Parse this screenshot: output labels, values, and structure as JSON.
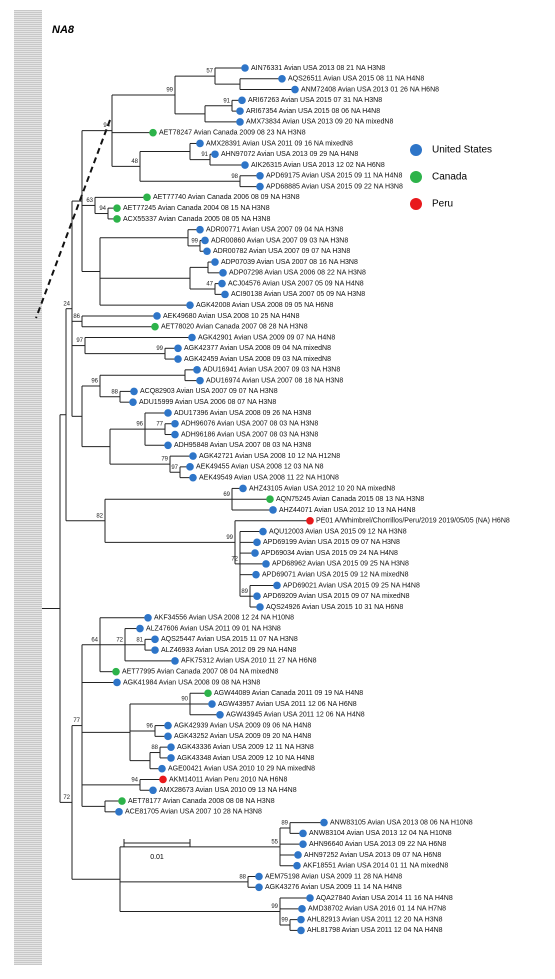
{
  "title": "NA8",
  "legend": [
    {
      "label": "United States",
      "color": "#2e75c8"
    },
    {
      "label": "Canada",
      "color": "#2db34a"
    },
    {
      "label": "Peru",
      "color": "#e8191c"
    }
  ],
  "scale_label": "0.01",
  "leaves": [
    {
      "label": "AIN76331 Avian USA 2013 08 21 NA H3N8",
      "color": "#2e75c8"
    },
    {
      "label": "AQS26511 Avian USA 2015 08 11 NA H4N8",
      "color": "#2e75c8"
    },
    {
      "label": "ANM72408 Avian USA 2013 01 26 NA H6N8",
      "color": "#2e75c8"
    },
    {
      "label": "ARI67263 Avian USA 2015 07 31 NA H3N8",
      "color": "#2e75c8"
    },
    {
      "label": "ARI67354 Avian USA 2015 08 06 NA H4N8",
      "color": "#2e75c8"
    },
    {
      "label": "AMX73834 Avian USA 2013 09 20 NA mixedN8",
      "color": "#2e75c8"
    },
    {
      "label": "AET78247 Avian Canada 2009 08 23 NA H3N8",
      "color": "#2db34a"
    },
    {
      "label": "AMX28391 Avian USA 2011 09 16 NA mixedN8",
      "color": "#2e75c8"
    },
    {
      "label": "AHN97072 Avian USA 2013 09 29 NA H4N8",
      "color": "#2e75c8"
    },
    {
      "label": "AIK26315 Avian USA 2013 12 02 NA H6N8",
      "color": "#2e75c8"
    },
    {
      "label": "APD69175 Avian USA 2015 09 11 NA H4N8",
      "color": "#2e75c8"
    },
    {
      "label": "APD68885 Avian USA 2015 09 22 NA H3N8",
      "color": "#2e75c8"
    },
    {
      "label": "AET77740 Avian Canada 2006 08 09 NA H3N8",
      "color": "#2db34a"
    },
    {
      "label": "AET77245 Avian Canada 2004 08 15 NA H3N8",
      "color": "#2db34a"
    },
    {
      "label": "ACX55337 Avian Canada 2005 08 05 NA H3N8",
      "color": "#2db34a"
    },
    {
      "label": "ADR00771 Avian USA 2007 09 04 NA H3N8",
      "color": "#2e75c8"
    },
    {
      "label": "ADR00860 Avian USA 2007 09 03 NA H3N8",
      "color": "#2e75c8"
    },
    {
      "label": "ADR00782 Avian USA 2007 09 07 NA H3N8",
      "color": "#2e75c8"
    },
    {
      "label": "ADP07039 Avian USA 2007 08 16 NA H3N8",
      "color": "#2e75c8"
    },
    {
      "label": "ADP07298 Avian USA 2006 08 22 NA H3N8",
      "color": "#2e75c8"
    },
    {
      "label": "ACJ04576 Avian USA 2007 05 09 NA H4N8",
      "color": "#2e75c8"
    },
    {
      "label": "ACI90138 Avian USA 2007 05 09 NA H3N8",
      "color": "#2e75c8"
    },
    {
      "label": "AGK42008 Avian USA 2008 09 05 NA H6N8",
      "color": "#2e75c8"
    },
    {
      "label": "AEK49680 Avian USA 2008 10 25 NA H4N8",
      "color": "#2e75c8"
    },
    {
      "label": "AET78020 Avian Canada 2007 08 28 NA H3N8",
      "color": "#2db34a"
    },
    {
      "label": "AGK42901 Avian USA 2009 09 07 NA H4N8",
      "color": "#2e75c8"
    },
    {
      "label": "AGK42377 Avian USA 2008 09 04 NA mixedN8",
      "color": "#2e75c8"
    },
    {
      "label": "AGK42459 Avian USA 2008 09 03 NA mixedN8",
      "color": "#2e75c8"
    },
    {
      "label": "ADU16941 Avian USA 2007 09 03 NA H3N8",
      "color": "#2e75c8"
    },
    {
      "label": "ADU16974 Avian USA 2007 08 18 NA H3N8",
      "color": "#2e75c8"
    },
    {
      "label": "ACQ82903 Avian USA 2007 09 07 NA H3N8",
      "color": "#2e75c8"
    },
    {
      "label": "ADU15999 Avian USA 2006 08 07 NA H3N8",
      "color": "#2e75c8"
    },
    {
      "label": "ADU17396 Avian USA 2008 09 26 NA H3N8",
      "color": "#2e75c8"
    },
    {
      "label": "ADH96076 Avian USA 2007 08 03 NA H3N8",
      "color": "#2e75c8"
    },
    {
      "label": "ADH96186 Avian USA 2007 08 03 NA H3N8",
      "color": "#2e75c8"
    },
    {
      "label": "ADH95848 Avian USA 2007 08 03 NA H3N8",
      "color": "#2e75c8"
    },
    {
      "label": "AGK42721 Avian USA 2008 10 12 NA H12N8",
      "color": "#2e75c8"
    },
    {
      "label": "AEK49455 Avian USA 2008 12 03 NA N8",
      "color": "#2e75c8"
    },
    {
      "label": "AEK49549 Avian USA 2008 11 22 NA H10N8",
      "color": "#2e75c8"
    },
    {
      "label": "AHZ43105 Avian USA 2012 10 20 NA mixedN8",
      "color": "#2e75c8"
    },
    {
      "label": "AQN75245 Avian Canada 2015 08 13 NA H3N8",
      "color": "#2db34a"
    },
    {
      "label": "AHZ44071 Avian USA 2012 10 13 NA H4N8",
      "color": "#2e75c8"
    },
    {
      "label": "PE01 A/Whimbrel/Chorrillos/Peru/2019 2019/05/05 (NA) H6N8",
      "color": "#e8191c"
    },
    {
      "label": "AQU12003 Avian USA 2015 09 12 NA H3N8",
      "color": "#2e75c8"
    },
    {
      "label": "APD69199 Avian USA 2015 09 07 NA H3N8",
      "color": "#2e75c8"
    },
    {
      "label": "APD69034 Avian USA 2015 09 24 NA H4N8",
      "color": "#2e75c8"
    },
    {
      "label": "APD68962 Avian USA 2015 09 25 NA H3N8",
      "color": "#2e75c8"
    },
    {
      "label": "APD69071 Avian USA 2015 09 12 NA mixedN8",
      "color": "#2e75c8"
    },
    {
      "label": "APD69021 Avian USA 2015 09 25 NA H4N8",
      "color": "#2e75c8"
    },
    {
      "label": "APD69209 Avian USA 2015 09 07 NA mixedN8",
      "color": "#2e75c8"
    },
    {
      "label": "AQS24926 Avian USA 2015 10 31 NA H6N8",
      "color": "#2e75c8"
    },
    {
      "label": "AKF34556 Avian USA 2008 12 24 NA H10N8",
      "color": "#2e75c8"
    },
    {
      "label": "ALZ47606 Avian USA 2011 09 01 NA H3N8",
      "color": "#2e75c8"
    },
    {
      "label": "AQS25447 Avian USA 2015 11 07 NA H3N8",
      "color": "#2e75c8"
    },
    {
      "label": "ALZ46933 Avian USA 2012 09 29 NA H4N8",
      "color": "#2e75c8"
    },
    {
      "label": "AFK75312 Avian USA 2010 11 27 NA H6N8",
      "color": "#2e75c8"
    },
    {
      "label": "AET77995 Avian Canada 2007 08 04 NA mixedN8",
      "color": "#2db34a"
    },
    {
      "label": "AGK41984 Avian USA 2008 09 08 NA H3N8",
      "color": "#2e75c8"
    },
    {
      "label": "AGW44089 Avian Canada 2011 09 19 NA H4N8",
      "color": "#2db34a"
    },
    {
      "label": "AGW43957 Avian USA 2011 12 06 NA H6N8",
      "color": "#2e75c8"
    },
    {
      "label": "AGW43945 Avian USA 2011 12 06 NA H4N8",
      "color": "#2e75c8"
    },
    {
      "label": "AGK42939 Avian USA 2009 09 06 NA H4N8",
      "color": "#2e75c8"
    },
    {
      "label": "AGK43252 Avian USA 2009 09 20 NA H4N8",
      "color": "#2e75c8"
    },
    {
      "label": "AGK43336 Avian USA 2009 12 11 NA H3N8",
      "color": "#2e75c8"
    },
    {
      "label": "AGK43348 Avian USA 2009 12 10 NA H4N8",
      "color": "#2e75c8"
    },
    {
      "label": "AGE00421 Avian USA 2010 10 29 NA mixedN8",
      "color": "#2e75c8"
    },
    {
      "label": "AKM14011 Avian Peru 2010 NA H6N8",
      "color": "#e8191c"
    },
    {
      "label": "AMX28673 Avian USA 2010 09 13 NA H4N8",
      "color": "#2e75c8"
    },
    {
      "label": "AET78177 Avian Canada 2008 08 08 NA H3N8",
      "color": "#2db34a"
    },
    {
      "label": "ACE81705 Avian USA 2007 10 28 NA H3N8",
      "color": "#2e75c8"
    },
    {
      "label": "ANW83105 Avian USA 2013 08 06 NA H10N8",
      "color": "#2e75c8"
    },
    {
      "label": "ANW83104 Avian USA 2013 12 04 NA H10N8",
      "color": "#2e75c8"
    },
    {
      "label": "AHN96640 Avian USA 2013 09 22 NA H6N8",
      "color": "#2e75c8"
    },
    {
      "label": "AHN97252 Avian USA 2013 09 07 NA H6N8",
      "color": "#2e75c8"
    },
    {
      "label": "AKF18551 Avian USA 2014 01 11 NA mixedN8",
      "color": "#2e75c8"
    },
    {
      "label": "AEM75198 Avian USA 2009 11 28 NA H4N8",
      "color": "#2e75c8"
    },
    {
      "label": "AGK43276 Avian USA 2009 11 14 NA H4N8",
      "color": "#2e75c8"
    },
    {
      "label": "AQA27840 Avian USA 2014 11 16 NA H4N8",
      "color": "#2e75c8"
    },
    {
      "label": "AMD38702 Avian USA 2016 01 14 NA H7N8",
      "color": "#2e75c8"
    },
    {
      "label": "AHL82913 Avian USA 2011 12 20 NA H3N8",
      "color": "#2e75c8"
    },
    {
      "label": "AHL81798 Avian USA 2011 12 04 NA H4N8",
      "color": "#2e75c8"
    }
  ],
  "supports": [
    99,
    57,
    91,
    94,
    48,
    91,
    98,
    63,
    94,
    99,
    47,
    24,
    86,
    97,
    99,
    96,
    88,
    96,
    77,
    79,
    97,
    82,
    69,
    99,
    72,
    89,
    72,
    77,
    64,
    72,
    81,
    90,
    96,
    88,
    94,
    55,
    89,
    88,
    99,
    99
  ]
}
